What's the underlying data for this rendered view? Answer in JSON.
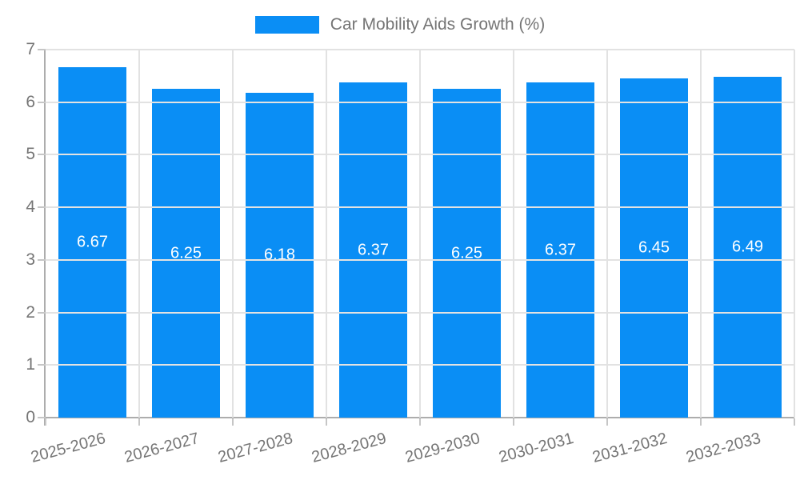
{
  "legend": {
    "label": "Car Mobility Aids Growth (%)"
  },
  "chart_data": {
    "type": "bar",
    "title": "Car Mobility Aids Growth (%)",
    "categories": [
      "2025-2026",
      "2026-2027",
      "2027-2028",
      "2028-2029",
      "2029-2030",
      "2030-2031",
      "2031-2032",
      "2032-2033"
    ],
    "values": [
      6.67,
      6.25,
      6.18,
      6.37,
      6.25,
      6.37,
      6.45,
      6.49
    ],
    "value_labels": [
      "6.67",
      "6.25",
      "6.18",
      "6.37",
      "6.25",
      "6.37",
      "6.45",
      "6.49"
    ],
    "xlabel": "",
    "ylabel": "",
    "ylim": [
      0,
      7
    ],
    "yticks": [
      0,
      1,
      2,
      3,
      4,
      5,
      6,
      7
    ],
    "grid": true,
    "legend_position": "top",
    "bar_color": "#0a8ef5",
    "value_label_color": "#ffffff",
    "axis_color": "#adadad",
    "tick_color": "#c6c6c6",
    "grid_color": "#e2e2e2",
    "axis_text_color": "#757575"
  }
}
